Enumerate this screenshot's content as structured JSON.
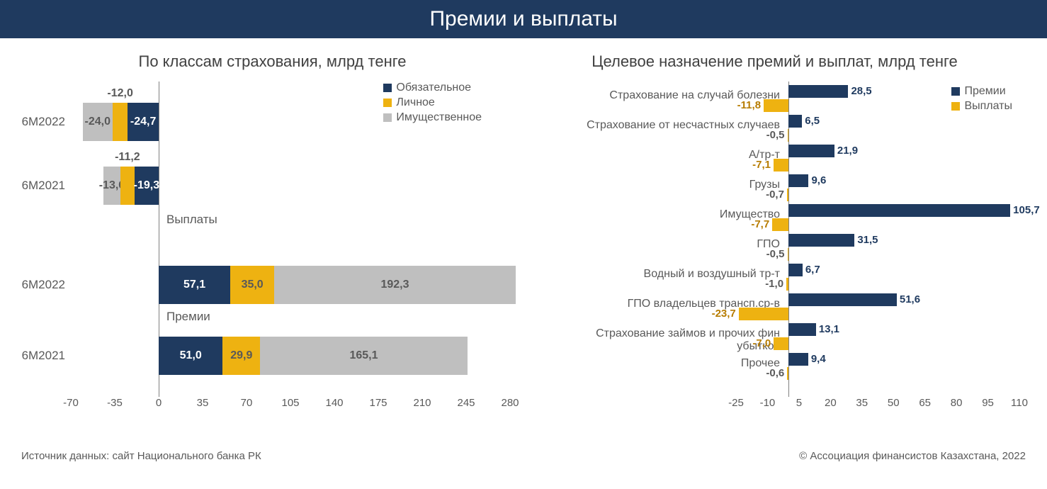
{
  "header": {
    "title": "Премии и выплаты"
  },
  "footer": {
    "source_label": "Источник данных: сайт Национального банка РК",
    "copyright": "© Ассоциация финансистов Казахстана, 2022"
  },
  "colors": {
    "header_bg": "#1f3a5f",
    "navy": "#1f3a5f",
    "yellow": "#eeb211",
    "gray": "#bfbfbf",
    "text_gray": "#595959",
    "axis": "#808080"
  },
  "left_chart": {
    "type": "stacked-bar-horizontal",
    "title": "По классам страхования, млрд тенге",
    "x_min": -70,
    "x_max": 280,
    "x_step": 35,
    "x_ticks": [
      "-70",
      "-35",
      "0",
      "35",
      "70",
      "105",
      "140",
      "175",
      "210",
      "245",
      "280"
    ],
    "legend": [
      {
        "label": "Обязательное",
        "color": "#1f3a5f"
      },
      {
        "label": "Личное",
        "color": "#eeb211"
      },
      {
        "label": "Имущественное",
        "color": "#bfbfbf"
      }
    ],
    "sections": [
      {
        "label": "Выплаты",
        "rows": [
          {
            "category": "6М2022",
            "direction": "neg",
            "segments": [
              {
                "key": "oblig",
                "value": -24.7,
                "label": "-24,7",
                "color": "#1f3a5f",
                "text_color": "#ffffff"
              },
              {
                "key": "pers",
                "value": -12.0,
                "label": "-12,0",
                "color": "#eeb211",
                "text_color": "#595959",
                "label_above": true
              },
              {
                "key": "prop",
                "value": -24.0,
                "label": "-24,0",
                "color": "#bfbfbf",
                "text_color": "#595959"
              }
            ]
          },
          {
            "category": "6М2021",
            "direction": "neg",
            "segments": [
              {
                "key": "oblig",
                "value": -19.3,
                "label": "-19,3",
                "color": "#1f3a5f",
                "text_color": "#ffffff"
              },
              {
                "key": "pers",
                "value": -11.2,
                "label": "-11,2",
                "color": "#eeb211",
                "text_color": "#595959",
                "label_above": true
              },
              {
                "key": "prop",
                "value": -13.6,
                "label": "-13,6",
                "color": "#bfbfbf",
                "text_color": "#595959"
              }
            ]
          }
        ]
      },
      {
        "label": "Премии",
        "rows": [
          {
            "category": "6М2022",
            "direction": "pos",
            "segments": [
              {
                "key": "oblig",
                "value": 57.1,
                "label": "57,1",
                "color": "#1f3a5f",
                "text_color": "#ffffff"
              },
              {
                "key": "pers",
                "value": 35.0,
                "label": "35,0",
                "color": "#eeb211",
                "text_color": "#595959"
              },
              {
                "key": "prop",
                "value": 192.3,
                "label": "192,3",
                "color": "#bfbfbf",
                "text_color": "#595959"
              }
            ]
          },
          {
            "category": "6М2021",
            "direction": "pos",
            "segments": [
              {
                "key": "oblig",
                "value": 51.0,
                "label": "51,0",
                "color": "#1f3a5f",
                "text_color": "#ffffff"
              },
              {
                "key": "pers",
                "value": 29.9,
                "label": "29,9",
                "color": "#eeb211",
                "text_color": "#595959"
              },
              {
                "key": "prop",
                "value": 165.1,
                "label": "165,1",
                "color": "#bfbfbf",
                "text_color": "#595959"
              }
            ]
          }
        ]
      }
    ]
  },
  "right_chart": {
    "type": "diverging-bar-horizontal",
    "title": "Целевое назначение премий и выплат, млрд тенге",
    "x_min": -25,
    "x_max": 110,
    "x_step": 15,
    "x_ticks": [
      "-25",
      "-10",
      "5",
      "20",
      "35",
      "50",
      "65",
      "80",
      "95",
      "110"
    ],
    "legend": [
      {
        "label": "Премии",
        "color": "#1f3a5f"
      },
      {
        "label": "Выплаты",
        "color": "#eeb211"
      }
    ],
    "rows": [
      {
        "label": "Страхование на случай болезни",
        "premium": 28.5,
        "premium_label": "28,5",
        "payout": -11.8,
        "payout_label": "-11,8"
      },
      {
        "label": "Страхование от несчастных случаев",
        "premium": 6.5,
        "premium_label": "6,5",
        "payout": -0.5,
        "payout_label": "-0,5"
      },
      {
        "label": "А/тр-т",
        "premium": 21.9,
        "premium_label": "21,9",
        "payout": -7.1,
        "payout_label": "-7,1"
      },
      {
        "label": "Грузы",
        "premium": 9.6,
        "premium_label": "9,6",
        "payout": -0.7,
        "payout_label": "-0,7"
      },
      {
        "label": "Имущество",
        "premium": 105.7,
        "premium_label": "105,7",
        "payout": -7.7,
        "payout_label": "-7,7"
      },
      {
        "label": "ГПО",
        "premium": 31.5,
        "premium_label": "31,5",
        "payout": -0.5,
        "payout_label": "-0,5"
      },
      {
        "label": "Водный и воздушный тр-т",
        "premium": 6.7,
        "premium_label": "6,7",
        "payout": -1.0,
        "payout_label": "-1,0"
      },
      {
        "label": "ГПО владельцев трансп.ср-в",
        "premium": 51.6,
        "premium_label": "51,6",
        "payout": -23.7,
        "payout_label": "-23,7"
      },
      {
        "label": "Страхование займов и прочих фин убытков",
        "premium": 13.1,
        "premium_label": "13,1",
        "payout": -7.0,
        "payout_label": "-7,0"
      },
      {
        "label": "Прочее",
        "premium": 9.4,
        "premium_label": "9,4",
        "payout": -0.6,
        "payout_label": "-0,6"
      }
    ]
  }
}
